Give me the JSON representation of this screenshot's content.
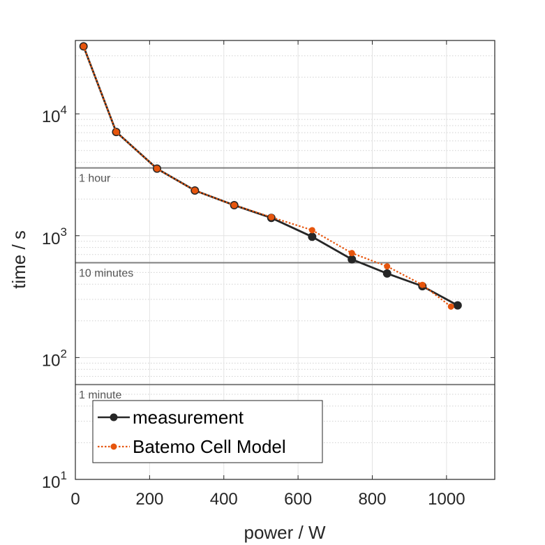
{
  "chart_data": {
    "type": "line",
    "xlabel": "power / W",
    "ylabel": "time / s",
    "xlim": [
      0,
      1130
    ],
    "ylim": [
      10,
      40000
    ],
    "yscale": "log",
    "grid": true,
    "legend_position": "bottom-left",
    "x_ticks": [
      "0",
      "200",
      "400",
      "600",
      "800",
      "1000"
    ],
    "x_tick_values": [
      0,
      200,
      400,
      600,
      800,
      1000
    ],
    "y_ticks": [
      {
        "base": "10",
        "exp": "1",
        "value": 10
      },
      {
        "base": "10",
        "exp": "2",
        "value": 100
      },
      {
        "base": "10",
        "exp": "3",
        "value": 1000
      },
      {
        "base": "10",
        "exp": "4",
        "value": 10000
      }
    ],
    "reference_lines": [
      {
        "label": "1 hour",
        "y": 3600
      },
      {
        "label": "10 minutes",
        "y": 600
      },
      {
        "label": "1 minute",
        "y": 60
      }
    ],
    "series": [
      {
        "name": "measurement",
        "color": "#262626",
        "style": "solid",
        "x": [
          22,
          110,
          220,
          322,
          428,
          528,
          638,
          745,
          840,
          935,
          1030
        ],
        "y": [
          35800,
          7100,
          3550,
          2350,
          1780,
          1400,
          980,
          640,
          490,
          385,
          268
        ]
      },
      {
        "name": "Batemo Cell Model",
        "color": "#e6550d",
        "style": "dotted",
        "x": [
          22,
          110,
          220,
          322,
          428,
          528,
          638,
          745,
          840,
          935,
          1012
        ],
        "y": [
          35800,
          7100,
          3550,
          2350,
          1780,
          1420,
          1110,
          720,
          560,
          395,
          262
        ]
      }
    ]
  }
}
